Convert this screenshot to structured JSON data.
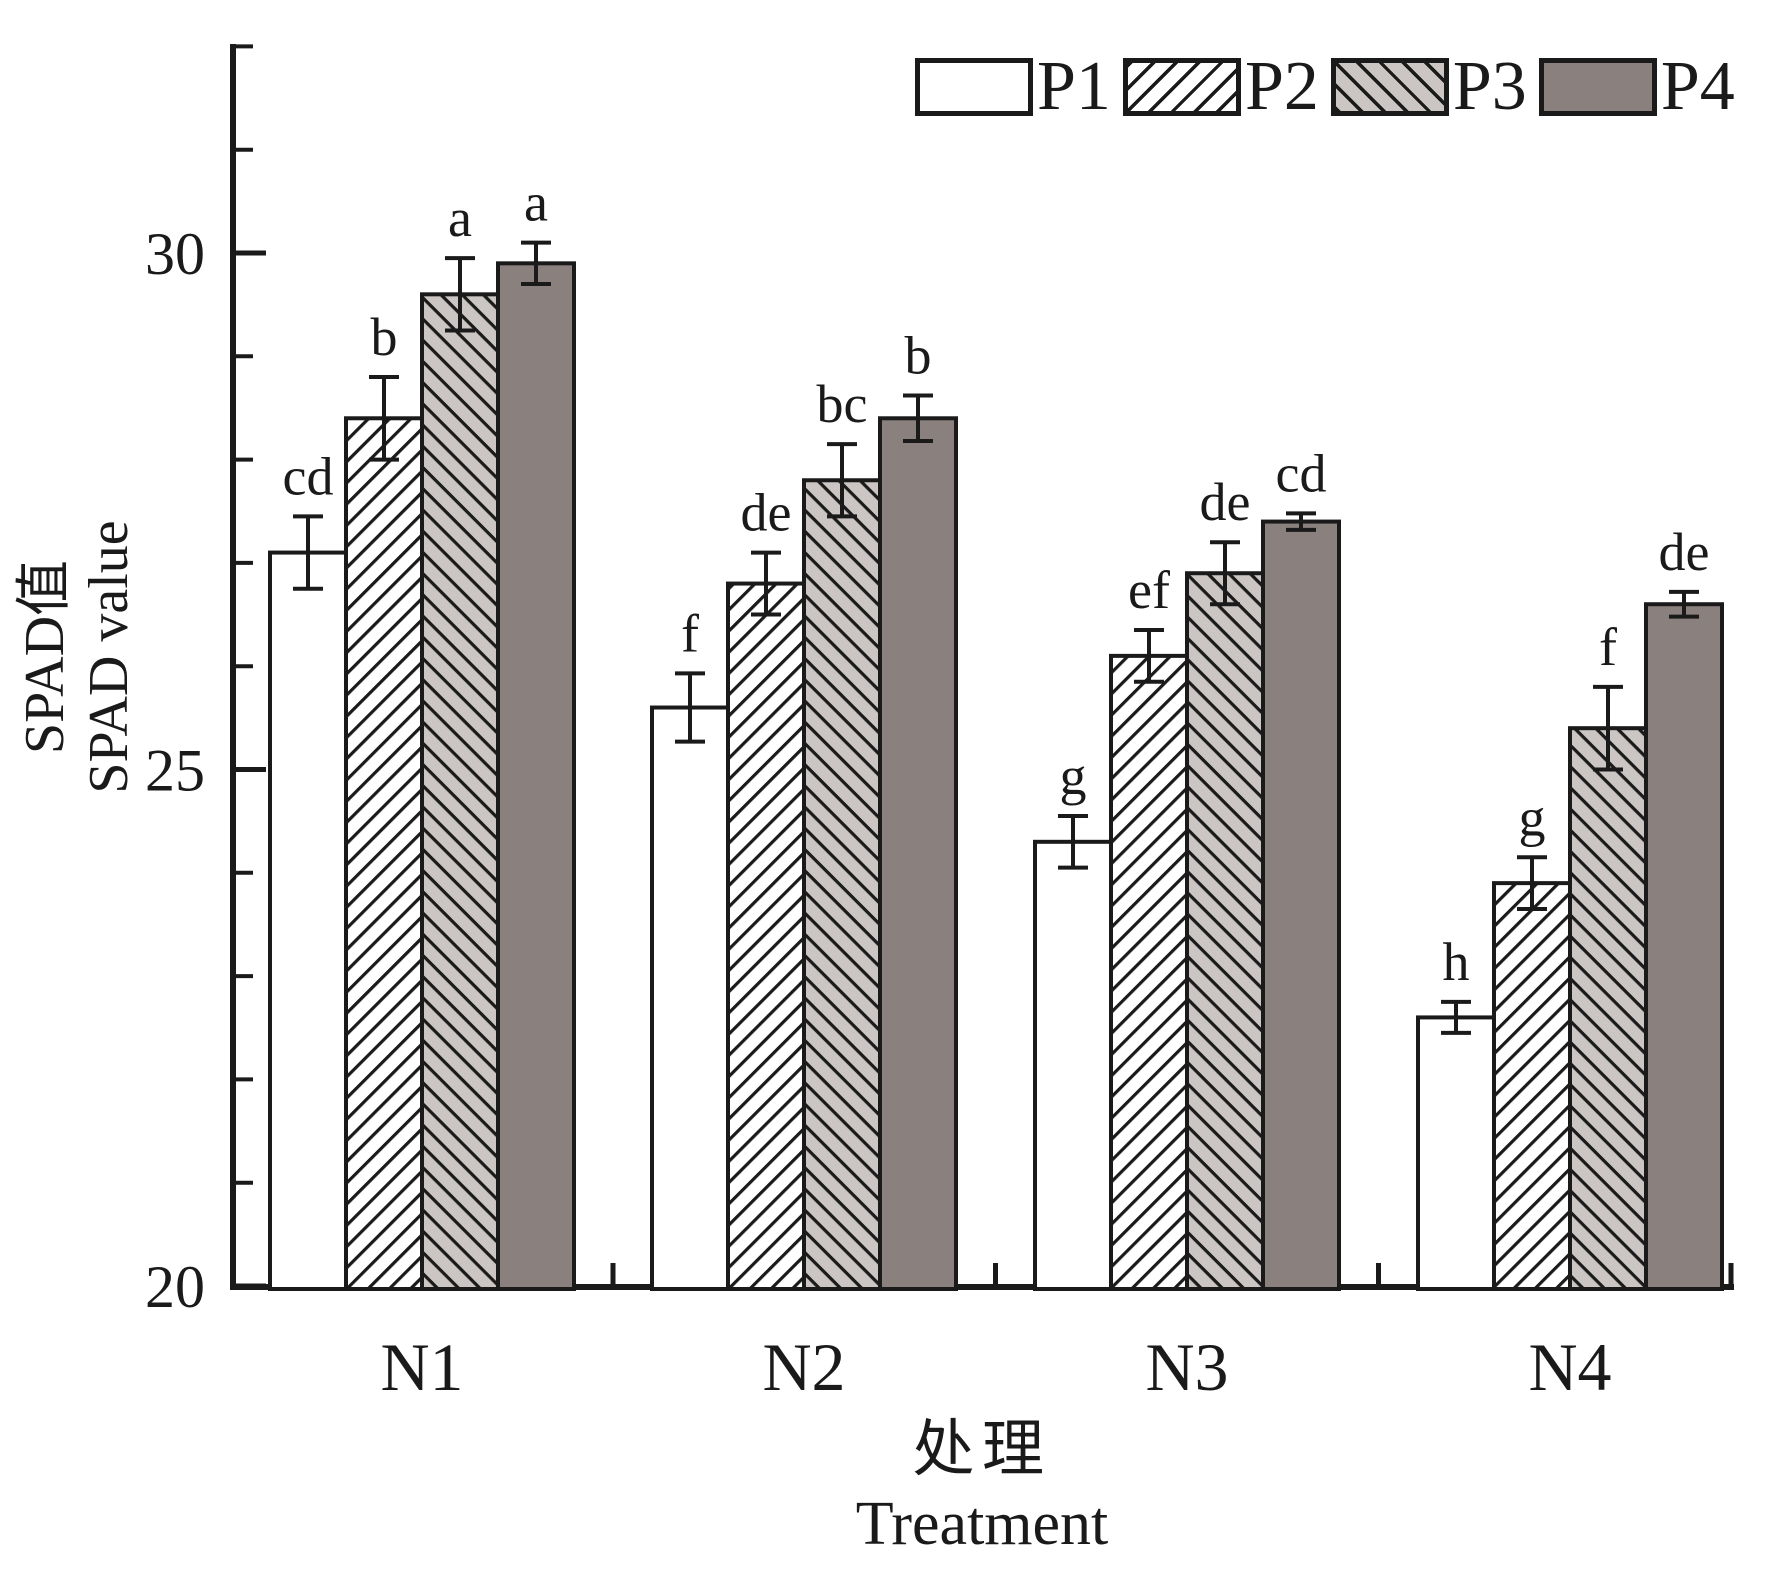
{
  "chart_data": {
    "type": "bar",
    "title": "",
    "categories": [
      "N1",
      "N2",
      "N3",
      "N4"
    ],
    "series": [
      {
        "name": "P1",
        "fill": "#ffffff",
        "hatch": "none",
        "values": [
          27.1,
          25.6,
          24.3,
          22.6
        ],
        "errors": [
          0.35,
          0.33,
          0.25,
          0.15
        ],
        "sig_letters": [
          "cd",
          "f",
          "g",
          "h"
        ]
      },
      {
        "name": "P2",
        "fill": "#ffffff",
        "hatch": "forward-diagonal",
        "values": [
          28.4,
          26.8,
          26.1,
          23.9
        ],
        "errors": [
          0.4,
          0.3,
          0.25,
          0.25
        ],
        "sig_letters": [
          "b",
          "de",
          "ef",
          "g"
        ]
      },
      {
        "name": "P3",
        "fill": "#cbc6c3",
        "hatch": "backward-diagonal",
        "values": [
          29.6,
          27.8,
          26.9,
          25.4
        ],
        "errors": [
          0.35,
          0.35,
          0.3,
          0.4
        ],
        "sig_letters": [
          "a",
          "bc",
          "de",
          "f"
        ]
      },
      {
        "name": "P4",
        "fill": "#8a817e",
        "hatch": "none",
        "values": [
          29.9,
          28.4,
          27.4,
          26.6
        ],
        "errors": [
          0.2,
          0.22,
          0.08,
          0.12
        ],
        "sig_letters": [
          "a",
          "b",
          "cd",
          "de"
        ]
      }
    ],
    "axes": {
      "y": {
        "label_line1": "SPAD值",
        "label_line2": "SPAD value",
        "ylim": [
          20,
          32
        ],
        "major_ticks": [
          20,
          25,
          30
        ],
        "minor_ticks": [
          21,
          22,
          23,
          24,
          26,
          27,
          28,
          29,
          31,
          32
        ]
      },
      "x": {
        "label_line1": "处理",
        "label_line2": "Treatment"
      }
    },
    "legend_position": "top",
    "grid": false,
    "colors": {
      "outline": "#1a1a1a",
      "p3_fill": "#cbc6c3",
      "p4_fill": "#8a817e"
    }
  }
}
